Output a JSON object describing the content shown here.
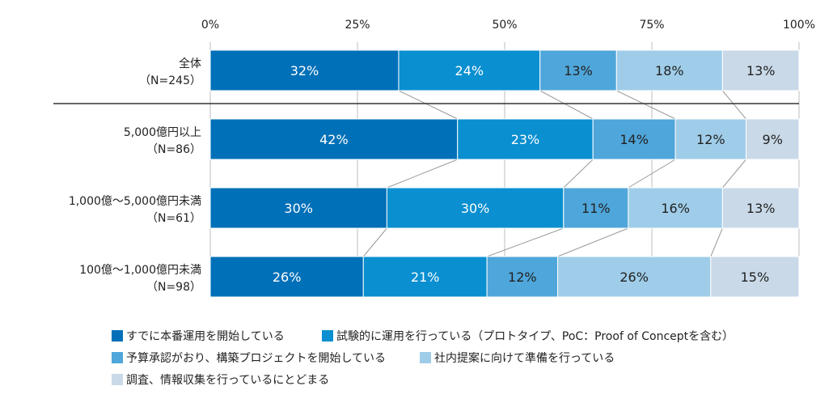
{
  "chart_data": {
    "type": "bar",
    "orientation": "horizontal",
    "stacked": "percent",
    "categories": [
      [
        "全体",
        "（N=245）"
      ],
      [
        "5,000億円以上",
        "（N=86）"
      ],
      [
        "1,000億～5,000億円未満",
        "（N=61）"
      ],
      [
        "100億～1,000億円未満",
        "（N=98）"
      ]
    ],
    "xticks": [
      "0%",
      "25%",
      "50%",
      "75%",
      "100%"
    ],
    "xlim": [
      0,
      100
    ],
    "series": [
      {
        "name": "すでに本番運用を開始している",
        "color": "#0070b8",
        "label_color": "#ffffff",
        "values": [
          32,
          42,
          30,
          26
        ]
      },
      {
        "name": "試験的に運用を行っている（プロトタイプ、PoC：Proof of Conceptを含む）",
        "color": "#0a8fd0",
        "label_color": "#ffffff",
        "values": [
          24,
          23,
          30,
          21
        ]
      },
      {
        "name": "予算承認がおり、構築プロジェクトを開始している",
        "color": "#4fa6da",
        "label_color": "#222222",
        "values": [
          13,
          14,
          11,
          12
        ]
      },
      {
        "name": "社内提案に向けて準備を行っている",
        "color": "#9fcde9",
        "label_color": "#222222",
        "values": [
          18,
          12,
          16,
          26
        ]
      },
      {
        "name": "調査、情報収集を行っているにとどまる",
        "color": "#c9d9e8",
        "label_color": "#222222",
        "values": [
          13,
          9,
          13,
          15
        ]
      }
    ],
    "legend_position": "bottom",
    "grid": true
  }
}
